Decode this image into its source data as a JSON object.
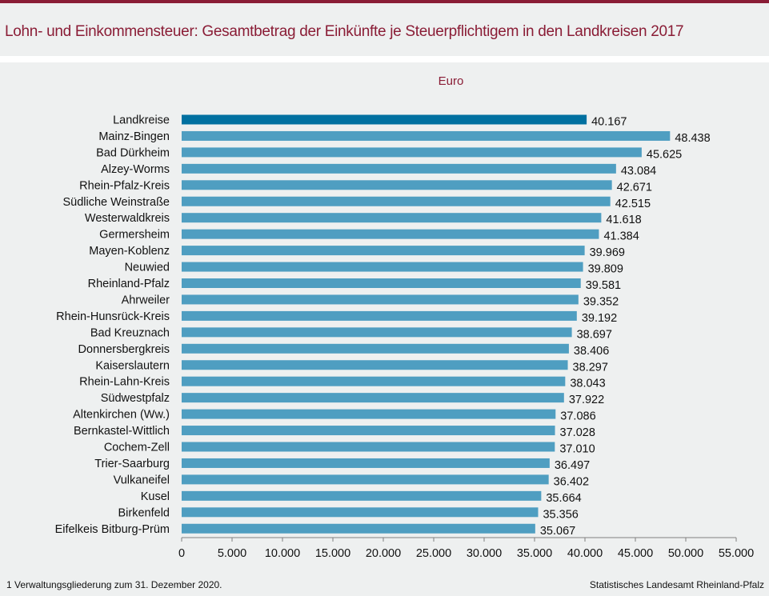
{
  "header": {
    "title": "Lohn- und Einkommensteuer: Gesamtbetrag der Einkünfte je Steuerpflichtigem in den Landkreisen 2017"
  },
  "footer": {
    "footnote": "1 Verwaltungsgliederung  zum 31. Dezember 2020.",
    "source": "Statistisches Landesamt Rheinland-Pfalz"
  },
  "colors": {
    "accent": "#8a1d36",
    "bar": "#4f9ec1",
    "highlight_bar": "#0070a0",
    "axis": "#808080"
  },
  "chart_data": {
    "type": "bar",
    "orientation": "horizontal",
    "title": "Lohn- und Einkommensteuer: Gesamtbetrag der Einkünfte je Steuerpflichtigem in den Landkreisen 2017",
    "unit_label": "Euro",
    "xlabel": "",
    "ylabel": "",
    "xlim": [
      0,
      55000
    ],
    "x_ticks": [
      0,
      5000,
      10000,
      15000,
      20000,
      25000,
      30000,
      35000,
      40000,
      45000,
      50000,
      55000
    ],
    "x_tick_labels": [
      "0",
      "5.000",
      "10.000",
      "15.000",
      "20.000",
      "25.000",
      "30.000",
      "35.000",
      "40.000",
      "45.000",
      "50.000",
      "55.000"
    ],
    "grid": false,
    "legend": "none",
    "highlighted_category": "Landkreise",
    "categories": [
      "Landkreise",
      "Mainz-Bingen",
      "Bad Dürkheim",
      "Alzey-Worms",
      "Rhein-Pfalz-Kreis",
      "Südliche Weinstraße",
      "Westerwaldkreis",
      "Germersheim",
      "Mayen-Koblenz",
      "Neuwied",
      "Rheinland-Pfalz",
      "Ahrweiler",
      "Rhein-Hunsrück-Kreis",
      "Bad Kreuznach",
      "Donnersbergkreis",
      "Kaiserslautern",
      "Rhein-Lahn-Kreis",
      "Südwestpfalz",
      "Altenkirchen (Ww.)",
      "Bernkastel-Wittlich",
      "Cochem-Zell",
      "Trier-Saarburg",
      "Vulkaneifel",
      "Kusel",
      "Birkenfeld",
      "Eifelkeis Bitburg-Prüm"
    ],
    "values": [
      40167,
      48438,
      45625,
      43084,
      42671,
      42515,
      41618,
      41384,
      39969,
      39809,
      39581,
      39352,
      39192,
      38697,
      38406,
      38297,
      38043,
      37922,
      37086,
      37028,
      37010,
      36497,
      36402,
      35664,
      35356,
      35067
    ],
    "value_labels": [
      "40.167",
      "48.438",
      "45.625",
      "43.084",
      "42.671",
      "42.515",
      "41.618",
      "41.384",
      "39.969",
      "39.809",
      "39.581",
      "39.352",
      "39.192",
      "38.697",
      "38.406",
      "38.297",
      "38.043",
      "37.922",
      "37.086",
      "37.028",
      "37.010",
      "36.497",
      "36.402",
      "35.664",
      "35.356",
      "35.067"
    ]
  }
}
